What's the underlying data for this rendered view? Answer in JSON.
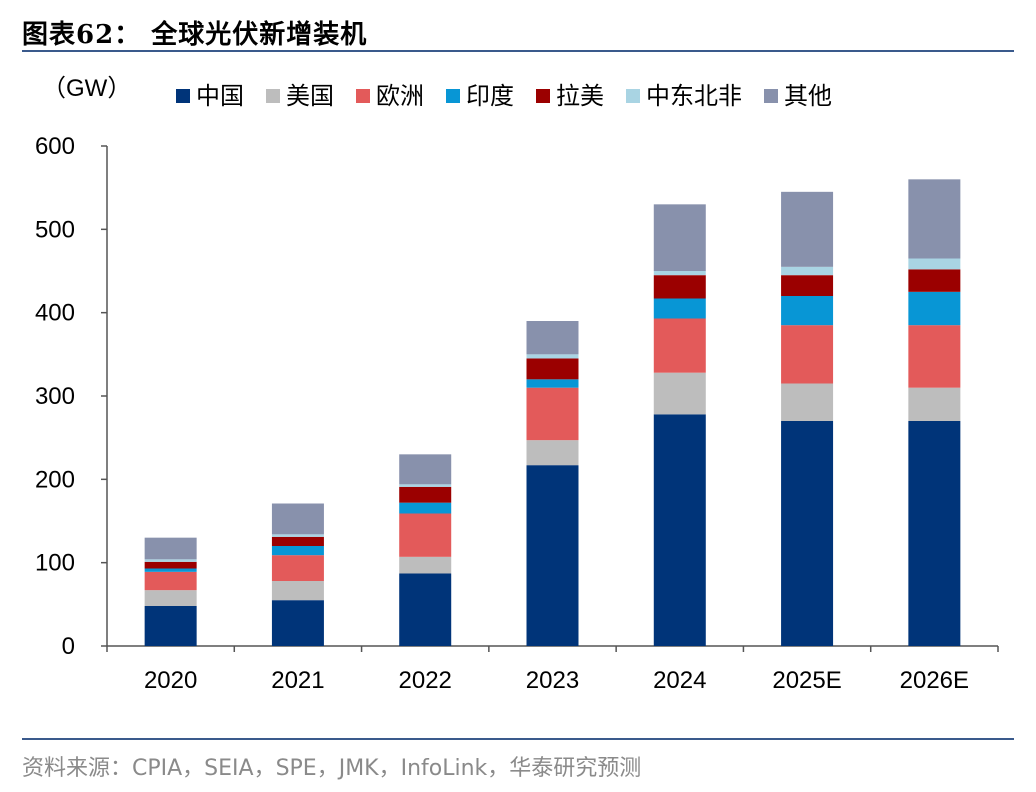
{
  "title": "图表62：  全球光伏新增装机",
  "source": "资料来源：CPIA，SEIA，SPE，JMK，InfoLink，华泰研究预测",
  "chart_data": {
    "type": "bar",
    "stacked": true,
    "unit_label": "（GW）",
    "categories": [
      "2020",
      "2021",
      "2022",
      "2023",
      "2024",
      "2025E",
      "2026E"
    ],
    "ylim": [
      0,
      600
    ],
    "yticks": [
      "0",
      "100",
      "200",
      "300",
      "400",
      "500",
      "600"
    ],
    "legend_position": "top",
    "grid": false,
    "series": [
      {
        "name": "中国",
        "color": "#003479",
        "values": [
          48,
          55,
          87,
          217,
          278,
          270,
          270
        ]
      },
      {
        "name": "美国",
        "color": "#bdbdbd",
        "values": [
          19,
          23,
          20,
          30,
          50,
          45,
          40
        ]
      },
      {
        "name": "欧洲",
        "color": "#e35a5a",
        "values": [
          22,
          31,
          52,
          63,
          65,
          70,
          75
        ]
      },
      {
        "name": "印度",
        "color": "#0896d5",
        "values": [
          4,
          11,
          13,
          10,
          24,
          35,
          40
        ]
      },
      {
        "name": "拉美",
        "color": "#9b0000",
        "values": [
          8,
          11,
          19,
          25,
          28,
          25,
          27
        ]
      },
      {
        "name": "中东北非",
        "color": "#a9d4e3",
        "values": [
          3,
          3,
          3,
          5,
          5,
          10,
          13
        ]
      },
      {
        "name": "其他",
        "color": "#8891ac",
        "values": [
          26,
          37,
          36,
          40,
          80,
          90,
          95
        ]
      }
    ]
  }
}
